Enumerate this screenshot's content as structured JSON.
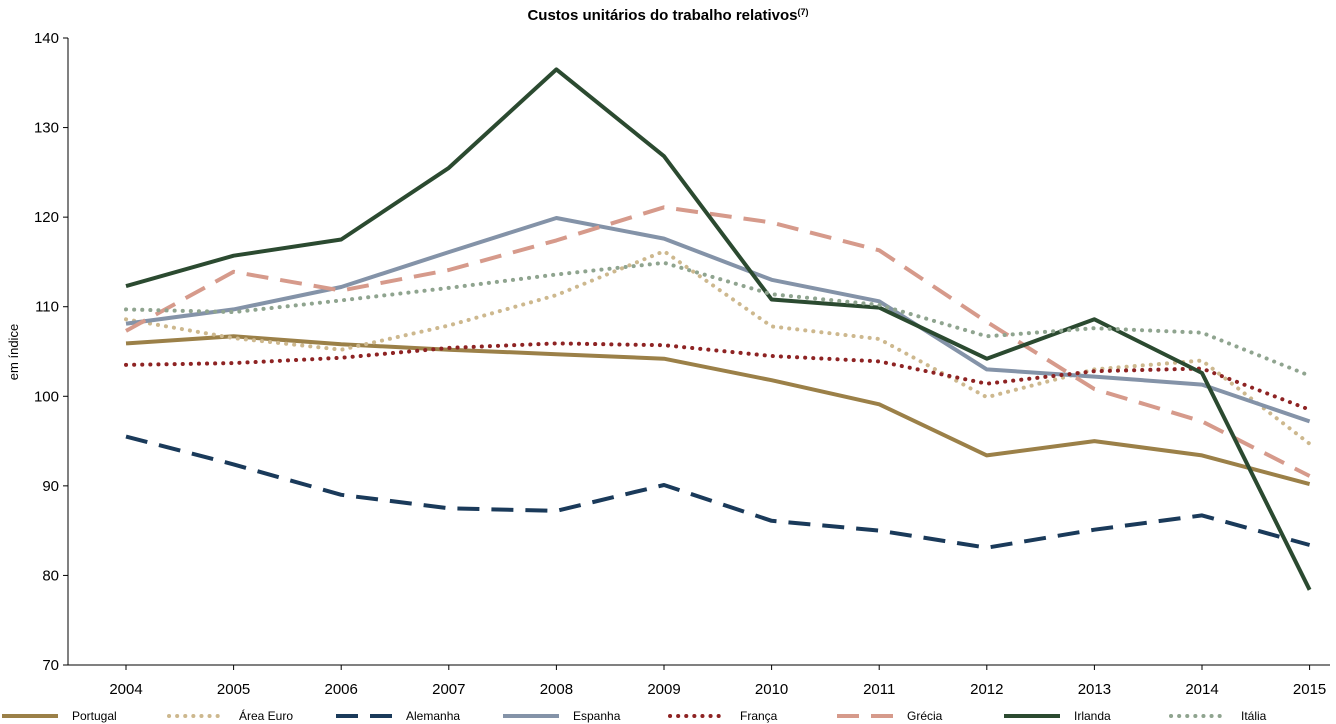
{
  "chart_data": {
    "type": "line",
    "title": "Custos unitários do trabalho relativos",
    "title_superscript": "(7)",
    "ylabel": "em índice",
    "xlabel": "",
    "ylim": [
      70,
      140
    ],
    "y_ticks": [
      70,
      80,
      90,
      100,
      110,
      120,
      130,
      140
    ],
    "grid": false,
    "legend_position": "bottom",
    "categories": [
      "2004",
      "2005",
      "2006",
      "2007",
      "2008",
      "2009",
      "2010",
      "2011",
      "2012",
      "2013",
      "2014",
      "2015"
    ],
    "series": [
      {
        "name": "Portugal",
        "color": "#9B8048",
        "style": "solid",
        "values": [
          105.9,
          106.7,
          105.8,
          105.2,
          104.7,
          104.2,
          101.8,
          99.1,
          93.4,
          95.0,
          93.4,
          90.2
        ]
      },
      {
        "name": "Área Euro",
        "color": "#CDB88E",
        "style": "dotted",
        "values": [
          108.6,
          106.5,
          105.2,
          107.9,
          111.3,
          116.2,
          107.8,
          106.4,
          99.9,
          103.0,
          104.0,
          94.7
        ]
      },
      {
        "name": "Alemanha",
        "color": "#1A3A5A",
        "style": "dashed",
        "values": [
          95.5,
          92.4,
          89.0,
          87.5,
          87.2,
          90.1,
          86.1,
          85.0,
          83.1,
          85.1,
          86.7,
          83.4
        ]
      },
      {
        "name": "Espanha",
        "color": "#8493A8",
        "style": "solid",
        "values": [
          108.1,
          109.7,
          112.2,
          116.1,
          119.9,
          117.6,
          113.0,
          110.6,
          103.0,
          102.2,
          101.3,
          97.2
        ]
      },
      {
        "name": "França",
        "color": "#8E2323",
        "style": "dotted",
        "values": [
          103.5,
          103.7,
          104.3,
          105.4,
          105.9,
          105.7,
          104.5,
          103.9,
          101.4,
          102.8,
          103.1,
          98.5
        ]
      },
      {
        "name": "Grécia",
        "color": "#D69A8B",
        "style": "dashed",
        "values": [
          107.3,
          113.9,
          111.8,
          114.1,
          117.4,
          121.1,
          119.4,
          116.3,
          108.3,
          100.8,
          97.2,
          91.1
        ]
      },
      {
        "name": "Irlanda",
        "color": "#2B4A30",
        "style": "solid",
        "values": [
          112.3,
          115.7,
          117.5,
          125.5,
          136.5,
          126.8,
          110.8,
          109.9,
          104.2,
          108.6,
          102.6,
          78.4
        ]
      },
      {
        "name": "Itália",
        "color": "#8FA48F",
        "style": "dotted",
        "values": [
          109.7,
          109.4,
          110.7,
          112.1,
          113.6,
          114.9,
          111.4,
          110.2,
          106.7,
          107.6,
          107.1,
          102.3
        ]
      }
    ]
  }
}
